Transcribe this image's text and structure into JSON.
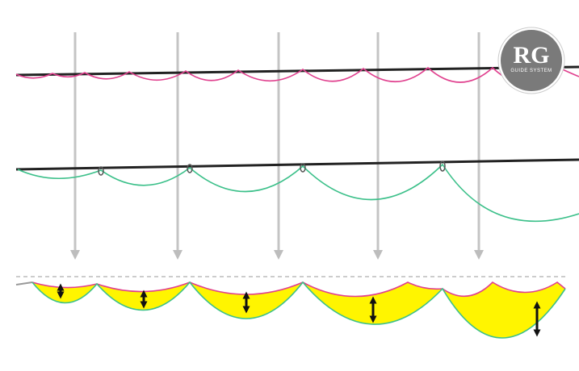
{
  "logo": {
    "title": "RG",
    "subtitle": "GUIDE SYSTEM"
  }
}
